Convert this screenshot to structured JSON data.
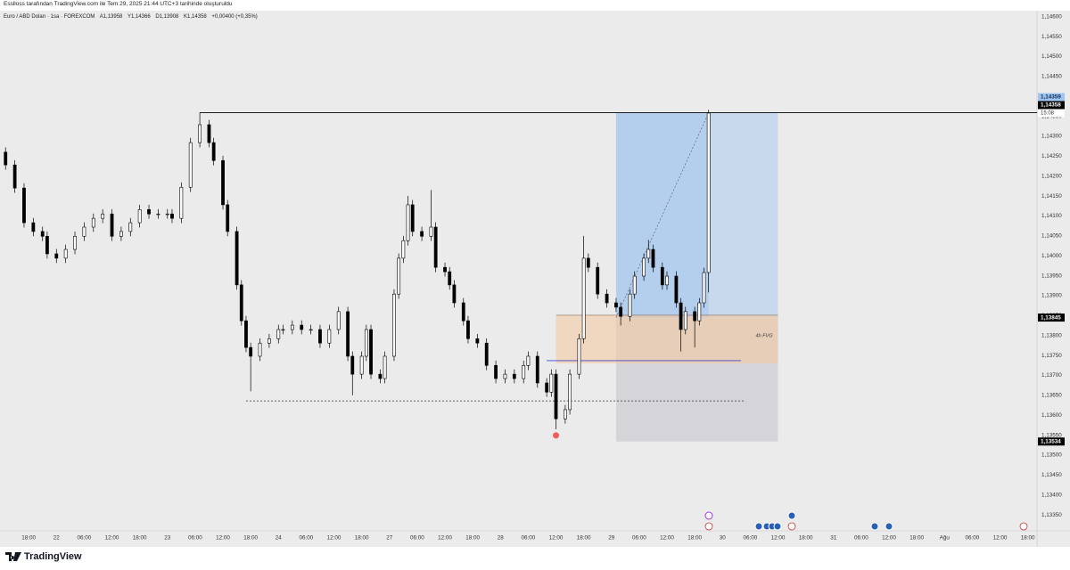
{
  "header": {
    "caption": "Esslloss tarafından TradingView.com ile Tem 29, 2025 21:44 UTC+3 tarihinde oluşturuldu",
    "symbol": "Euro / ABD Doları · 1sa · FOREXCOM",
    "legend": [
      "A1,13958",
      "Y1,14366",
      "D1,13908",
      "K1,14358",
      "+0,00400 (+0,35%)"
    ]
  },
  "chart_data": {
    "type": "candlestick",
    "up_color": "#ffffff",
    "down_color": "#000000",
    "edge_color": "#000000",
    "grid": false,
    "xlim": [
      -6.2,
      218
    ],
    "ylim": [
      1.1331,
      1.14615
    ],
    "x": [
      -5,
      -3,
      -1,
      1,
      3,
      4,
      6,
      8,
      10,
      12,
      14,
      16,
      18,
      20,
      22,
      24,
      26,
      28,
      30,
      31,
      33,
      35,
      37,
      39,
      40,
      42,
      43,
      45,
      46,
      47,
      48,
      50,
      52,
      54,
      55,
      57,
      59,
      61,
      63,
      65,
      67,
      69,
      70,
      72,
      73,
      74,
      76,
      77,
      79,
      80,
      81,
      82,
      83,
      85,
      87,
      88,
      90,
      91,
      92,
      94,
      95,
      97,
      99,
      101,
      103,
      105,
      107,
      108,
      110,
      112,
      113,
      114,
      116,
      117,
      119,
      120,
      121,
      123,
      125,
      127,
      128,
      130,
      131,
      133,
      134,
      135,
      137,
      138,
      140,
      141,
      142,
      144,
      145,
      146,
      147
    ],
    "open": [
      1.1426,
      1.14228,
      1.1417,
      1.14083,
      1.14061,
      1.14049,
      1.14005,
      1.13994,
      1.14016,
      1.14049,
      1.14072,
      1.14094,
      1.14105,
      1.14049,
      1.14061,
      1.14083,
      1.14116,
      1.14105,
      1.14105,
      1.14105,
      1.14094,
      1.14172,
      1.14284,
      1.14329,
      1.14284,
      1.14239,
      1.14128,
      1.14061,
      1.13927,
      1.13837,
      1.1377,
      1.13748,
      1.13781,
      1.13792,
      1.13815,
      1.13815,
      1.13826,
      1.13815,
      1.13815,
      1.13781,
      1.13815,
      1.1386,
      1.13748,
      1.13703,
      1.13748,
      1.13815,
      1.13703,
      1.13692,
      1.13748,
      1.13904,
      1.13994,
      1.14038,
      1.14128,
      1.14061,
      1.14049,
      1.14072,
      1.13971,
      1.1396,
      1.13927,
      1.13882,
      1.13837,
      1.13792,
      1.13781,
      1.13725,
      1.13692,
      1.13703,
      1.13692,
      1.13725,
      1.13748,
      1.13681,
      1.13658,
      1.13703,
      1.13591,
      1.13614,
      1.13703,
      1.13792,
      1.13994,
      1.13971,
      1.13904,
      1.13882,
      1.13871,
      1.13848,
      1.13904,
      1.13949,
      1.13994,
      1.14016,
      1.13971,
      1.13927,
      1.13949,
      1.13882,
      1.13815,
      1.1386,
      1.13837,
      1.13882,
      1.13958
    ],
    "high": [
      1.14272,
      1.1424,
      1.14182,
      1.14095,
      1.14073,
      1.14061,
      1.14017,
      1.14028,
      1.14061,
      1.14084,
      1.14106,
      1.14117,
      1.14117,
      1.14073,
      1.14095,
      1.14128,
      1.14128,
      1.14117,
      1.14117,
      1.14117,
      1.14184,
      1.14296,
      1.14359,
      1.14341,
      1.14296,
      1.14251,
      1.1414,
      1.14073,
      1.13939,
      1.13849,
      1.13782,
      1.13793,
      1.13804,
      1.13827,
      1.13827,
      1.13838,
      1.13838,
      1.13827,
      1.13827,
      1.13827,
      1.13872,
      1.13872,
      1.1376,
      1.1376,
      1.13827,
      1.13827,
      1.13715,
      1.1376,
      1.13916,
      1.14006,
      1.1405,
      1.1415,
      1.1414,
      1.14073,
      1.14165,
      1.14084,
      1.13983,
      1.13972,
      1.13939,
      1.13894,
      1.13849,
      1.13804,
      1.13793,
      1.13737,
      1.13715,
      1.13715,
      1.13737,
      1.1376,
      1.1376,
      1.13693,
      1.13715,
      1.13715,
      1.13626,
      1.13715,
      1.13804,
      1.1405,
      1.14006,
      1.13983,
      1.13916,
      1.13894,
      1.13883,
      1.13916,
      1.13961,
      1.14006,
      1.1404,
      1.14028,
      1.13983,
      1.13961,
      1.13961,
      1.13894,
      1.13872,
      1.13872,
      1.13894,
      1.1397,
      1.14366
    ],
    "low": [
      1.14216,
      1.14158,
      1.14071,
      1.14049,
      1.14037,
      1.13993,
      1.13982,
      1.13982,
      1.14004,
      1.14037,
      1.1406,
      1.14082,
      1.14037,
      1.14037,
      1.14049,
      1.14071,
      1.14093,
      1.14093,
      1.14093,
      1.14082,
      1.14082,
      1.1416,
      1.14272,
      1.14272,
      1.14227,
      1.14116,
      1.14049,
      1.13915,
      1.13825,
      1.13758,
      1.1366,
      1.13736,
      1.13769,
      1.1378,
      1.13803,
      1.13803,
      1.13803,
      1.13803,
      1.13769,
      1.13769,
      1.13803,
      1.13736,
      1.1365,
      1.13691,
      1.13736,
      1.13691,
      1.1368,
      1.1368,
      1.13736,
      1.13892,
      1.13982,
      1.14026,
      1.14049,
      1.14037,
      1.14037,
      1.13959,
      1.13948,
      1.13915,
      1.1387,
      1.13825,
      1.1378,
      1.13769,
      1.13713,
      1.1368,
      1.1368,
      1.1368,
      1.1368,
      1.13713,
      1.13669,
      1.13646,
      1.13646,
      1.13565,
      1.13579,
      1.13602,
      1.13691,
      1.1378,
      1.13959,
      1.13892,
      1.1387,
      1.13859,
      1.13825,
      1.13836,
      1.13892,
      1.13937,
      1.13982,
      1.13959,
      1.13915,
      1.13915,
      1.1387,
      1.1376,
      1.13803,
      1.1377,
      1.13825,
      1.1387,
      1.13908
    ],
    "close": [
      1.14228,
      1.1417,
      1.14083,
      1.14061,
      1.14049,
      1.14005,
      1.13994,
      1.14016,
      1.14049,
      1.14072,
      1.14094,
      1.14105,
      1.14049,
      1.14061,
      1.14083,
      1.14116,
      1.14105,
      1.14105,
      1.14105,
      1.14094,
      1.14172,
      1.14284,
      1.14329,
      1.14284,
      1.14239,
      1.14128,
      1.14061,
      1.13927,
      1.13837,
      1.1377,
      1.13748,
      1.13781,
      1.13792,
      1.13815,
      1.13815,
      1.13826,
      1.13815,
      1.13815,
      1.13781,
      1.13815,
      1.1386,
      1.13748,
      1.13703,
      1.13748,
      1.13815,
      1.13703,
      1.13692,
      1.13748,
      1.13904,
      1.13994,
      1.14038,
      1.14128,
      1.14061,
      1.14049,
      1.14072,
      1.13971,
      1.1396,
      1.13927,
      1.13882,
      1.13837,
      1.13792,
      1.13781,
      1.13725,
      1.13692,
      1.13703,
      1.13692,
      1.13725,
      1.13748,
      1.13681,
      1.13658,
      1.13703,
      1.13591,
      1.13614,
      1.13703,
      1.13792,
      1.13994,
      1.13971,
      1.13904,
      1.13882,
      1.13871,
      1.13848,
      1.13904,
      1.13949,
      1.13994,
      1.14016,
      1.13971,
      1.13927,
      1.13949,
      1.13882,
      1.13815,
      1.1386,
      1.13837,
      1.13882,
      1.13958,
      1.14358
    ],
    "yticks": [
      {
        "value": 1.146,
        "label": "1,14600"
      },
      {
        "value": 1.1455,
        "label": "1,14550"
      },
      {
        "value": 1.145,
        "label": "1,14500"
      },
      {
        "value": 1.1445,
        "label": "1,14450"
      },
      {
        "value": 1.144,
        "label": "1,14400"
      },
      {
        "value": 1.1435,
        "label": "1,14350"
      },
      {
        "value": 1.143,
        "label": "1,14300"
      },
      {
        "value": 1.1425,
        "label": "1,14250"
      },
      {
        "value": 1.142,
        "label": "1,14200"
      },
      {
        "value": 1.1415,
        "label": "1,14150"
      },
      {
        "value": 1.141,
        "label": "1,14100"
      },
      {
        "value": 1.1405,
        "label": "1,14050"
      },
      {
        "value": 1.14,
        "label": "1,14000"
      },
      {
        "value": 1.1395,
        "label": "1,13950"
      },
      {
        "value": 1.139,
        "label": "1,13900"
      },
      {
        "value": 1.1385,
        "label": "1,13850"
      },
      {
        "value": 1.138,
        "label": "1,13800"
      },
      {
        "value": 1.1375,
        "label": "1,13750"
      },
      {
        "value": 1.137,
        "label": "1,13700"
      },
      {
        "value": 1.1365,
        "label": "1,13650"
      },
      {
        "value": 1.136,
        "label": "1,13600"
      },
      {
        "value": 1.1355,
        "label": "1,13550"
      },
      {
        "value": 1.135,
        "label": "1,13500"
      },
      {
        "value": 1.1345,
        "label": "1,13450"
      },
      {
        "value": 1.134,
        "label": "1,13400"
      },
      {
        "value": 1.1335,
        "label": "1,13350"
      }
    ],
    "xticks": [
      {
        "value": 0,
        "label": "18:00"
      },
      {
        "value": 6,
        "label": "22"
      },
      {
        "value": 12,
        "label": "06:00"
      },
      {
        "value": 18,
        "label": "12:00"
      },
      {
        "value": 24,
        "label": "18:00"
      },
      {
        "value": 30,
        "label": "23"
      },
      {
        "value": 36,
        "label": "06:00"
      },
      {
        "value": 42,
        "label": "12:00"
      },
      {
        "value": 48,
        "label": "18:00"
      },
      {
        "value": 54,
        "label": "24"
      },
      {
        "value": 60,
        "label": "06:00"
      },
      {
        "value": 66,
        "label": "12:00"
      },
      {
        "value": 72,
        "label": "18:00"
      },
      {
        "value": 78,
        "label": "27"
      },
      {
        "value": 84,
        "label": "06:00"
      },
      {
        "value": 90,
        "label": "12:00"
      },
      {
        "value": 96,
        "label": "18:00"
      },
      {
        "value": 102,
        "label": "28"
      },
      {
        "value": 108,
        "label": "06:00"
      },
      {
        "value": 114,
        "label": "12:00"
      },
      {
        "value": 120,
        "label": "18:00"
      },
      {
        "value": 126,
        "label": "29"
      },
      {
        "value": 132,
        "label": "06:00"
      },
      {
        "value": 138,
        "label": "12:00"
      },
      {
        "value": 144,
        "label": "18:00"
      },
      {
        "value": 150,
        "label": "30"
      },
      {
        "value": 156,
        "label": "06:00"
      },
      {
        "value": 162,
        "label": "12:00"
      },
      {
        "value": 168,
        "label": "18:00"
      },
      {
        "value": 174,
        "label": "31"
      },
      {
        "value": 180,
        "label": "06:00"
      },
      {
        "value": 186,
        "label": "12:00"
      },
      {
        "value": 192,
        "label": "18:00"
      },
      {
        "value": 198,
        "label": "Ağu"
      },
      {
        "value": 204,
        "label": "06:00"
      },
      {
        "value": 210,
        "label": "12:00"
      },
      {
        "value": 216,
        "label": "18:00"
      }
    ],
    "lines": [
      {
        "value": 1.14359,
        "x": [
          37
        ],
        "extend_right": true,
        "color": "#000000",
        "dashed": false
      },
      {
        "value": 1.13636,
        "x": [
          47,
          155
        ],
        "color": "#333333",
        "dashed": true
      },
      {
        "value": 1.13737,
        "x": [
          112,
          154
        ],
        "color": "#3b47c8",
        "dashed": false
      }
    ],
    "zones": [
      {
        "name": "4h FVG",
        "top": 1.13851,
        "bottom": 1.1373,
        "x": [
          114,
          162
        ],
        "color": "#f3c9a3"
      }
    ],
    "position": {
      "x": [
        127,
        162
      ],
      "entry": {
        "value": 1.13845,
        "label": "1,13845"
      },
      "target": {
        "value": 1.14359,
        "label": "1,14359"
      },
      "stop": {
        "value": 1.13534,
        "label": "1,13534"
      },
      "target_color": "#9fc4f0",
      "stop_color": "#c0c0c8"
    },
    "last_price": {
      "value": 1.14358,
      "label": "1,14358",
      "countdown": "15:08"
    }
  },
  "footer": {
    "brand": "TradingView"
  }
}
